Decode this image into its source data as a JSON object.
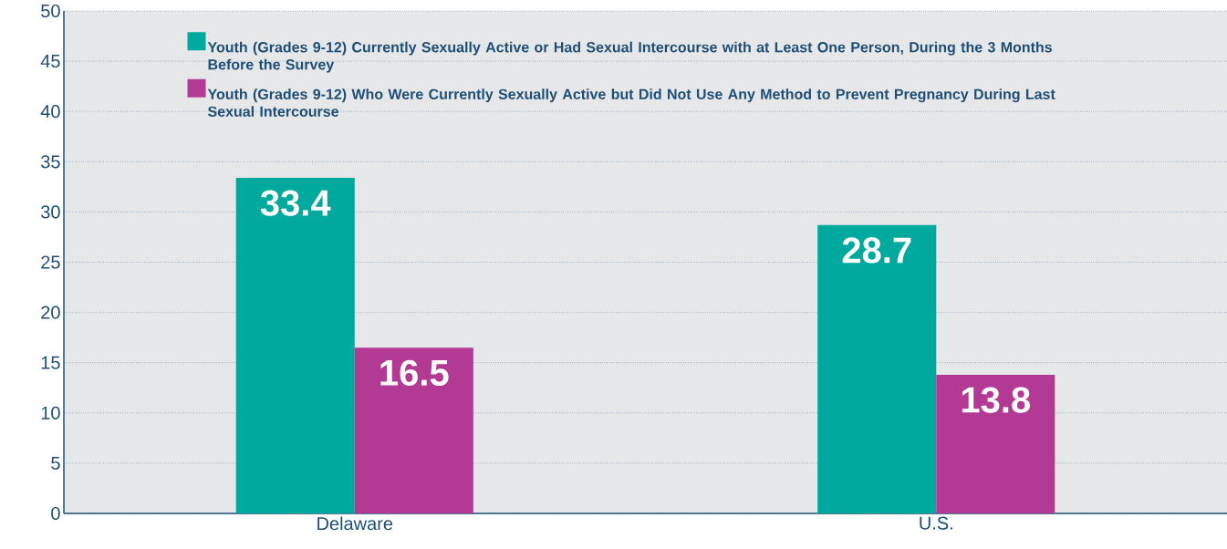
{
  "chart_data": {
    "type": "bar",
    "categories": [
      "Delaware",
      "U.S."
    ],
    "series": [
      {
        "name": "Youth (Grades 9-12) Currently Sexually Active or Had Sexual Intercourse with at Least One Person, During the 3 Months Before the Survey",
        "color": "#00a99d",
        "values": [
          33.4,
          28.7
        ]
      },
      {
        "name": "Youth (Grades 9-12) Who Were Currently Sexually Active but Did Not Use Any Method to Prevent Pregnancy During Last Sexual Intercourse",
        "color": "#b33a94",
        "values": [
          16.5,
          13.8
        ]
      }
    ],
    "ylim": [
      0,
      50
    ],
    "yticks": [
      0,
      5,
      10,
      15,
      20,
      25,
      30,
      35,
      40,
      45,
      50
    ],
    "grid": "y",
    "legend": "top",
    "data_labels": true
  }
}
